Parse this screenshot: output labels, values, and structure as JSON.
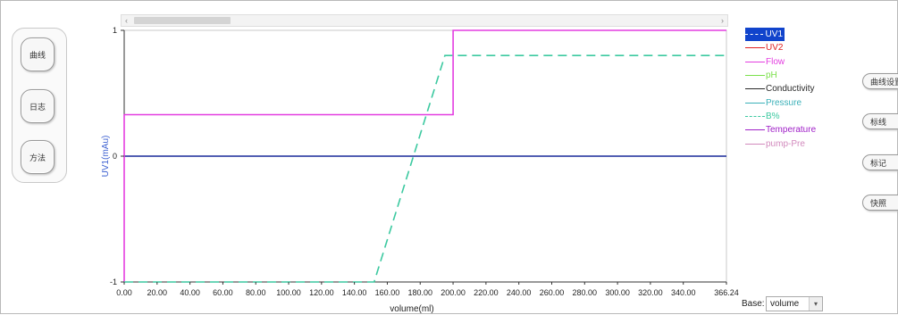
{
  "nav": {
    "items": [
      {
        "label": "曲线",
        "active": true
      },
      {
        "label": "日志",
        "active": false
      },
      {
        "label": "方法",
        "active": false
      }
    ]
  },
  "scrollbar": {
    "left_arrow": "‹",
    "right_arrow": "›"
  },
  "chart_data": {
    "type": "line",
    "xlabel": "volume(ml)",
    "ylabel": "UV1(mAu)",
    "xlim": [
      0,
      366.24
    ],
    "ylim": [
      -1,
      1
    ],
    "x_ticks": [
      "0.00",
      "20.00",
      "40.00",
      "60.00",
      "80.00",
      "100.00",
      "120.00",
      "140.00",
      "160.00",
      "180.00",
      "200.00",
      "220.00",
      "240.00",
      "260.00",
      "280.00",
      "300.00",
      "320.00",
      "340.00",
      "366.24"
    ],
    "y_ticks": [
      "1",
      "0",
      "-1"
    ],
    "series": [
      {
        "name": "UV1",
        "color": "#1a2a9a",
        "dash": "none",
        "x": [
          0,
          366.24
        ],
        "y": [
          0,
          0
        ]
      },
      {
        "name": "Flow",
        "color": "#e43de0",
        "dash": "none",
        "x": [
          0,
          0,
          200,
          200,
          366.24
        ],
        "y": [
          -1,
          0.33,
          0.33,
          1,
          1
        ]
      },
      {
        "name": "B%",
        "color": "#3cc9a0",
        "dash": "10,6",
        "x": [
          0,
          152,
          195,
          366.24
        ],
        "y": [
          -1,
          -1,
          0.8,
          0.8
        ]
      }
    ]
  },
  "legend": [
    {
      "label": "UV1",
      "color": "#1a2a9a",
      "dash": "2,1",
      "text_color": "#ffffff",
      "selected": true
    },
    {
      "label": "UV2",
      "color": "#e02020",
      "dash": "none",
      "text_color": "#e02020",
      "selected": false
    },
    {
      "label": "Flow",
      "color": "#e43de0",
      "dash": "none",
      "text_color": "#e43de0",
      "selected": false
    },
    {
      "label": "pH",
      "color": "#7be04a",
      "dash": "none",
      "text_color": "#7be04a",
      "selected": false
    },
    {
      "label": "Conductivity",
      "color": "#2a2a2a",
      "dash": "none",
      "text_color": "#2a2a2a",
      "selected": false
    },
    {
      "label": "Pressure",
      "color": "#3ab0b8",
      "dash": "none",
      "text_color": "#3ab0b8",
      "selected": false
    },
    {
      "label": "B%",
      "color": "#3cc9a0",
      "dash": "2,1",
      "text_color": "#3cc9a0",
      "selected": false
    },
    {
      "label": "Temperature",
      "color": "#a020c8",
      "dash": "none",
      "text_color": "#a020c8",
      "selected": false
    },
    {
      "label": "pump-Pre",
      "color": "#d28abd",
      "dash": "none",
      "text_color": "#d28abd",
      "selected": false
    }
  ],
  "right_buttons": [
    {
      "label": "曲线设置"
    },
    {
      "label": "标线"
    },
    {
      "label": "标记"
    },
    {
      "label": "快照"
    }
  ],
  "base": {
    "label": "Base:",
    "value": "volume",
    "dropdown_icon": "chevron-down-icon"
  }
}
